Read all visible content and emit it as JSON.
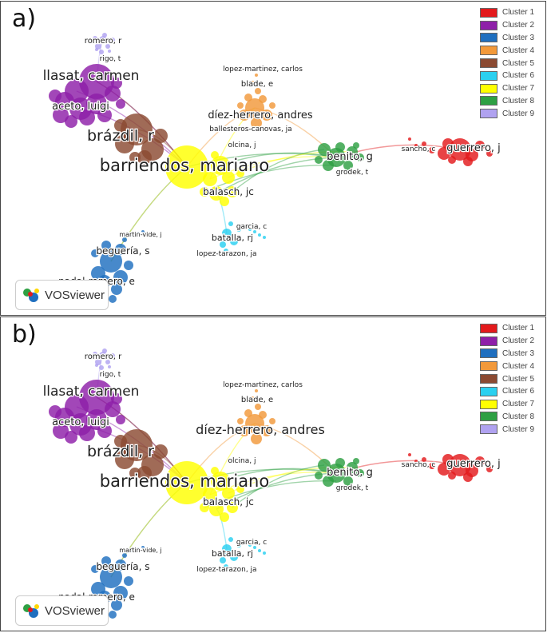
{
  "panels": [
    {
      "label": "a)"
    },
    {
      "label": "b)"
    }
  ],
  "legend": [
    {
      "name": "Cluster 1",
      "color": "#e31a1c"
    },
    {
      "name": "Cluster 2",
      "color": "#8e1fa8"
    },
    {
      "name": "Cluster 3",
      "color": "#1f6fbf"
    },
    {
      "name": "Cluster 4",
      "color": "#f2993a"
    },
    {
      "name": "Cluster 5",
      "color": "#8b4a32"
    },
    {
      "name": "Cluster 6",
      "color": "#2ad0f0"
    },
    {
      "name": "Cluster 7",
      "color": "#ffff00"
    },
    {
      "name": "Cluster 8",
      "color": "#2ea043"
    },
    {
      "name": "Cluster 9",
      "color": "#b0a2f0"
    }
  ],
  "logo": {
    "text": "VOSviewer"
  },
  "authors": {
    "romero": "romero, r",
    "rigo": "rigo, t",
    "llasat": "llasat, carmen",
    "aceto": "aceto, luigi",
    "brazdil": "brázdil, r",
    "barriendos": "barriendos, mariano",
    "lopez_martinez": "lopez-martinez, carlos",
    "blade": "blade, e",
    "diez_herrero": "díez-herrero, andres",
    "ballesteros": "ballesteros-canovas, ja",
    "olcina": "olcina, j",
    "balasch": "balasch, jc",
    "benito": "benito, g",
    "grodek": "grodek, t",
    "sancho": "sancho, c",
    "guerrero": "guerrero, j",
    "garcia": "garcia, c",
    "batalla": "batalla, rj",
    "lopez_tarazon": "lopez-tarazon, ja",
    "martin_vide": "martin-vide, j",
    "beguerria": "beguería, s",
    "nadal_romero": "nadal-romero, e"
  }
}
